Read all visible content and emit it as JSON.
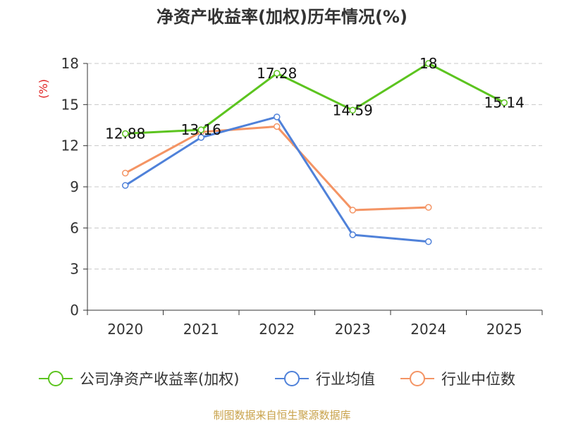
{
  "chart_data": {
    "type": "line",
    "title": "净资产收益率(加权)历年情况(%)",
    "ylabel": "(%)",
    "xlabel": "",
    "categories": [
      "2020",
      "2021",
      "2022",
      "2023",
      "2024",
      "2025"
    ],
    "ylim": [
      0,
      18
    ],
    "yticks": [
      0,
      3,
      6,
      9,
      12,
      15,
      18
    ],
    "grid": true,
    "legend_position": "bottom",
    "series": [
      {
        "name": "公司净资产收益率(加权)",
        "color": "#5cc41f",
        "values": [
          12.88,
          13.16,
          17.28,
          14.59,
          18,
          15.14
        ],
        "labels": [
          "12.88",
          "13.16",
          "17.28",
          "14.59",
          "18",
          "15.14"
        ]
      },
      {
        "name": "行业均值",
        "color": "#4f81d9",
        "values": [
          9.1,
          12.6,
          14.1,
          5.5,
          5.0,
          null
        ]
      },
      {
        "name": "行业中位数",
        "color": "#f49464",
        "values": [
          10.0,
          13.0,
          13.4,
          7.3,
          7.5,
          null
        ]
      }
    ]
  },
  "footer": "制图数据来自恒生聚源数据库"
}
